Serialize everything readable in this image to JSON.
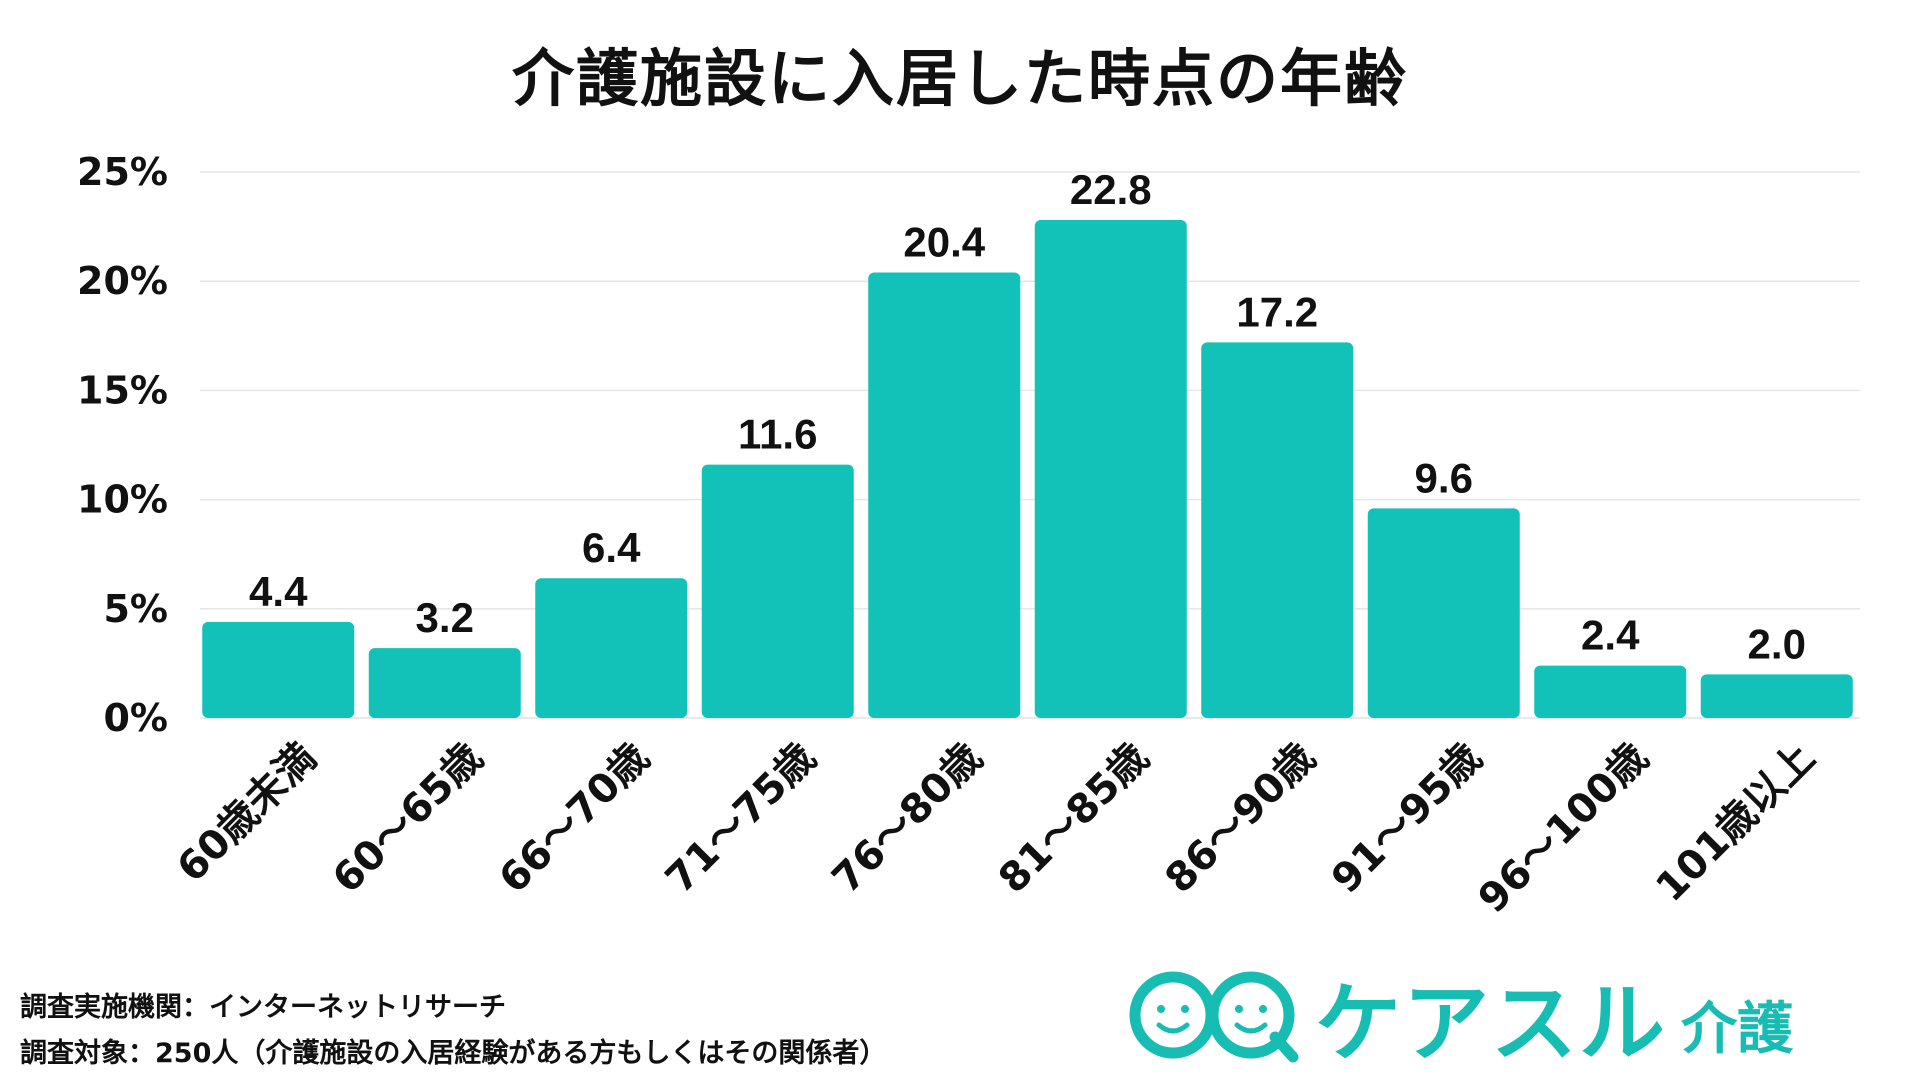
{
  "chart_data": {
    "type": "bar",
    "title": "介護施設に入居した時点の年齢",
    "categories": [
      "60歳未満",
      "60〜65歳",
      "66〜70歳",
      "71〜75歳",
      "76〜80歳",
      "81〜85歳",
      "86〜90歳",
      "91〜95歳",
      "96〜100歳",
      "101歳以上"
    ],
    "values": [
      4.4,
      3.2,
      6.4,
      11.6,
      20.4,
      22.8,
      17.2,
      9.6,
      2.4,
      2.0
    ],
    "value_labels": [
      "4.4",
      "3.2",
      "6.4",
      "11.6",
      "20.4",
      "22.8",
      "17.2",
      "9.6",
      "2.4",
      "2.0"
    ],
    "ylim": [
      0,
      25
    ],
    "y_ticks": [
      0,
      5,
      10,
      15,
      20,
      25
    ],
    "y_tick_labels": [
      "0%",
      "5%",
      "10%",
      "15%",
      "20%",
      "25%"
    ],
    "xlabel": "",
    "ylabel": "",
    "grid": true,
    "bar_color": "#12c1b8"
  },
  "footnotes": {
    "method": "調査実施機関：インターネットリサーチ",
    "target": "調査対象：250人（介護施設の入居経験がある方もしくはその関係者）"
  },
  "brand": {
    "name": "ケアスル",
    "sub": "介護",
    "color": "#17bdb2",
    "mark_icon": "smiley-faces-logo-icon"
  }
}
